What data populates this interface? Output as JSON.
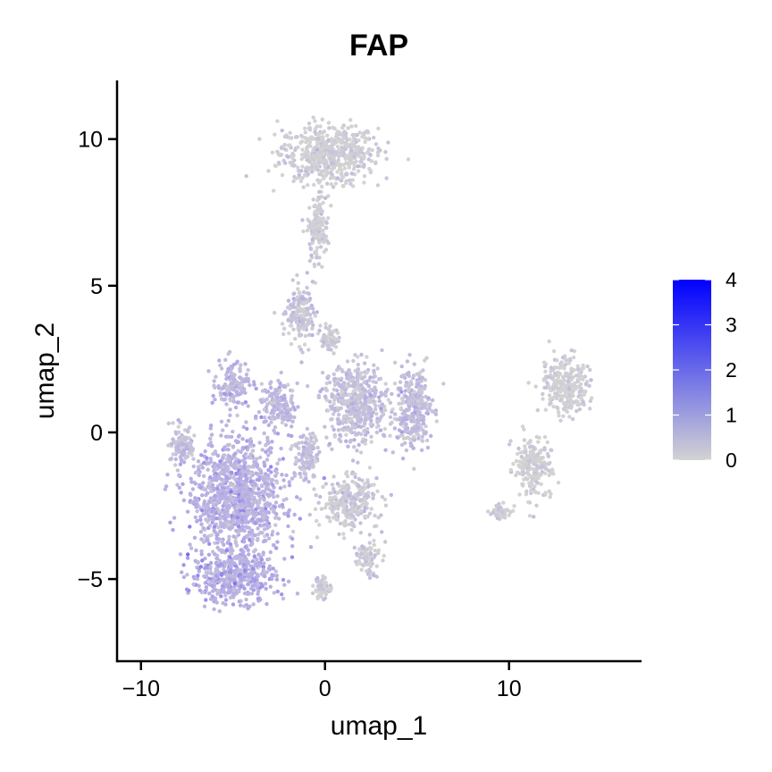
{
  "chart_data": {
    "type": "scatter",
    "title": "FAP",
    "xlabel": "umap_1",
    "ylabel": "umap_2",
    "xlim": [
      -11.3,
      17.2
    ],
    "ylim": [
      -7.8,
      12
    ],
    "x_ticks": [
      -10,
      0,
      10
    ],
    "x_tick_labels": [
      "−10",
      "0",
      "10"
    ],
    "y_ticks": [
      -5,
      0,
      5,
      10
    ],
    "y_tick_labels": [
      "−5",
      "0",
      "5",
      "10"
    ],
    "grid": false,
    "legend": {
      "placement": "right",
      "min": 0,
      "max": 4,
      "ticks": [
        0,
        1,
        2,
        3,
        4
      ],
      "tick_labels": [
        "0",
        "1",
        "2",
        "3",
        "4"
      ],
      "color_low": "#d3d3d3",
      "color_high": "#0000ff"
    },
    "clusters": [
      {
        "x": 0.2,
        "y": 9.5,
        "sx": 2.4,
        "sy": 0.9,
        "expr": 0.05
      },
      {
        "x": -0.4,
        "y": 7.0,
        "sx": 0.5,
        "sy": 1.1,
        "expr": 0.1
      },
      {
        "x": -1.3,
        "y": 4.0,
        "sx": 0.7,
        "sy": 0.9,
        "expr": 0.4
      },
      {
        "x": -5.0,
        "y": 1.6,
        "sx": 0.8,
        "sy": 0.7,
        "expr": 0.9
      },
      {
        "x": -2.5,
        "y": 0.9,
        "sx": 0.9,
        "sy": 0.7,
        "expr": 0.9
      },
      {
        "x": -7.8,
        "y": -0.4,
        "sx": 0.6,
        "sy": 0.6,
        "expr": 0.6
      },
      {
        "x": -4.8,
        "y": -2.2,
        "sx": 2.3,
        "sy": 1.8,
        "expr": 1.1
      },
      {
        "x": -5.0,
        "y": -4.9,
        "sx": 2.1,
        "sy": 0.8,
        "expr": 1.2
      },
      {
        "x": -1.0,
        "y": -0.8,
        "sx": 0.6,
        "sy": 0.8,
        "expr": 0.7
      },
      {
        "x": 1.7,
        "y": 1.0,
        "sx": 1.6,
        "sy": 1.2,
        "expr": 0.6
      },
      {
        "x": 4.8,
        "y": 0.8,
        "sx": 0.9,
        "sy": 1.3,
        "expr": 0.7
      },
      {
        "x": 1.3,
        "y": -2.4,
        "sx": 1.4,
        "sy": 0.8,
        "expr": 0.3
      },
      {
        "x": 2.3,
        "y": -4.3,
        "sx": 0.6,
        "sy": 0.5,
        "expr": 0.15
      },
      {
        "x": -0.2,
        "y": -5.3,
        "sx": 0.4,
        "sy": 0.3,
        "expr": 0.2
      },
      {
        "x": 0.3,
        "y": 3.2,
        "sx": 0.4,
        "sy": 0.4,
        "expr": 0.3
      },
      {
        "x": 13.0,
        "y": 1.6,
        "sx": 1.2,
        "sy": 0.9,
        "expr": 0.08
      },
      {
        "x": 11.3,
        "y": -1.2,
        "sx": 0.9,
        "sy": 0.9,
        "expr": 0.05
      },
      {
        "x": 9.6,
        "y": -2.7,
        "sx": 0.5,
        "sy": 0.2,
        "expr": 0.1
      }
    ]
  }
}
